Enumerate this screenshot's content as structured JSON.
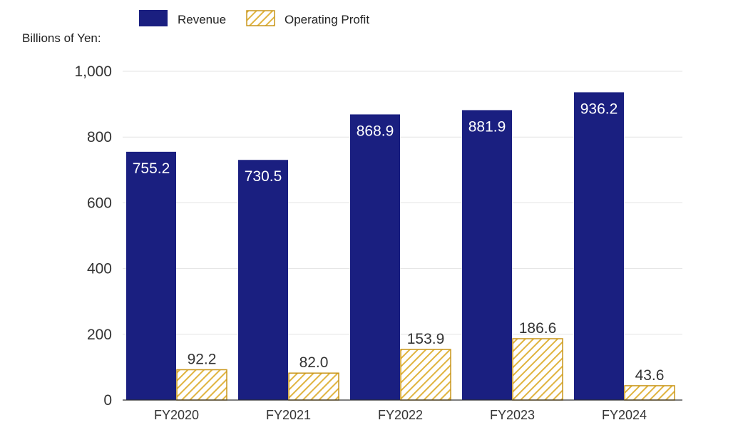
{
  "chart_data": {
    "type": "bar",
    "ylabel": "Billions of Yen:",
    "categories": [
      "FY2020",
      "FY2021",
      "FY2022",
      "FY2023",
      "FY2024"
    ],
    "series": [
      {
        "name": "Revenue",
        "values": [
          755.2,
          730.5,
          868.9,
          881.9,
          936.2
        ],
        "labels": [
          "755.2",
          "730.5",
          "868.9",
          "881.9",
          "936.2"
        ],
        "color": "#1a1f80",
        "style": "solid"
      },
      {
        "name": "Operating Profit",
        "values": [
          92.2,
          82.0,
          153.9,
          186.6,
          43.6
        ],
        "labels": [
          "92.2",
          "82.0",
          "153.9",
          "186.6",
          "43.6"
        ],
        "color": "#d4a017",
        "style": "hatched"
      }
    ],
    "ylim": [
      0,
      1000
    ],
    "yticks": [
      0,
      200,
      400,
      600,
      800,
      1000
    ],
    "ytick_labels": [
      "0",
      "200",
      "400",
      "600",
      "800",
      "1,000"
    ],
    "grid": true,
    "legend_position": "top-left"
  }
}
